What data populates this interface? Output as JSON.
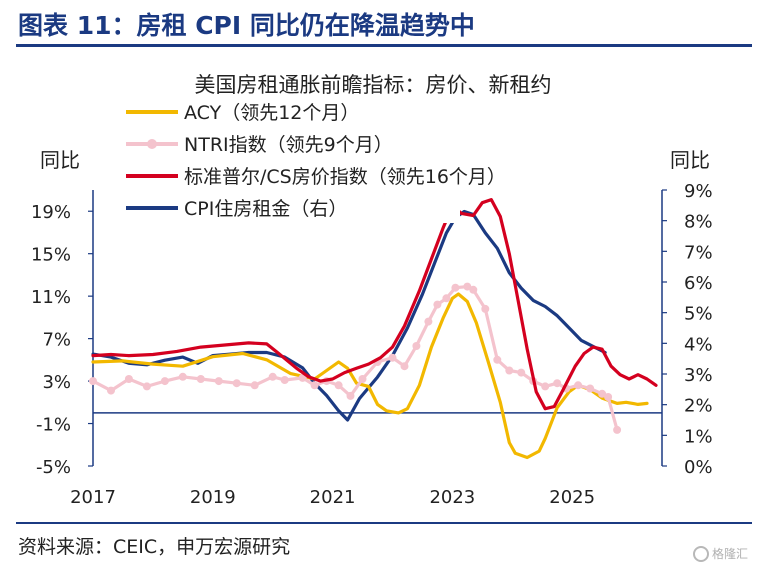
{
  "figure_title": "图表 11：房租 CPI 同比仍在降温趋势中",
  "source": "资料来源：CEIC，申万宏源研究",
  "watermark": "格隆汇",
  "chart_data": {
    "type": "line",
    "title": "美国房租通胀前瞻指标：房价、新租约",
    "left_axis": {
      "label": "同比",
      "ticks": [
        "19%",
        "15%",
        "11%",
        "7%",
        "3%",
        "-1%",
        "-5%"
      ],
      "range": [
        -5,
        21
      ]
    },
    "right_axis": {
      "label": "同比",
      "ticks": [
        "9%",
        "8%",
        "7%",
        "6%",
        "5%",
        "4%",
        "3%",
        "2%",
        "1%",
        "0%"
      ],
      "range": [
        0,
        9
      ]
    },
    "x_ticks": [
      "2017",
      "2019",
      "2021",
      "2023",
      "2025"
    ],
    "x_range": [
      2017.0,
      2026.5
    ],
    "legend_position": "top-left",
    "series": [
      {
        "name": "ACY（领先12个月）",
        "axis": "left",
        "color": "#f2b800",
        "points": [
          [
            2017.0,
            4.8
          ],
          [
            2017.5,
            4.9
          ],
          [
            2018.0,
            4.6
          ],
          [
            2018.5,
            4.4
          ],
          [
            2019.0,
            5.3
          ],
          [
            2019.5,
            5.6
          ],
          [
            2019.9,
            5.0
          ],
          [
            2020.3,
            3.7
          ],
          [
            2020.7,
            3.2
          ],
          [
            2020.9,
            4.0
          ],
          [
            2021.1,
            4.8
          ],
          [
            2021.25,
            4.2
          ],
          [
            2021.4,
            2.8
          ],
          [
            2021.6,
            2.5
          ],
          [
            2021.75,
            0.8
          ],
          [
            2021.9,
            0.2
          ],
          [
            2022.1,
            0.0
          ],
          [
            2022.25,
            0.4
          ],
          [
            2022.45,
            2.6
          ],
          [
            2022.65,
            6.2
          ],
          [
            2022.85,
            9.0
          ],
          [
            2023.0,
            10.8
          ],
          [
            2023.1,
            11.2
          ],
          [
            2023.25,
            10.5
          ],
          [
            2023.4,
            8.5
          ],
          [
            2023.6,
            4.8
          ],
          [
            2023.8,
            1.0
          ],
          [
            2023.95,
            -2.8
          ],
          [
            2024.05,
            -3.8
          ],
          [
            2024.25,
            -4.2
          ],
          [
            2024.45,
            -3.6
          ],
          [
            2024.55,
            -2.4
          ],
          [
            2024.75,
            0.5
          ],
          [
            2024.95,
            2.0
          ],
          [
            2025.1,
            2.6
          ],
          [
            2025.3,
            2.2
          ],
          [
            2025.5,
            1.4
          ],
          [
            2025.75,
            0.9
          ],
          [
            2025.9,
            1.0
          ],
          [
            2026.1,
            0.8
          ],
          [
            2026.25,
            0.9
          ]
        ]
      },
      {
        "name": "NTRI指数（领先9个月）",
        "axis": "left",
        "color": "#f4c3cd",
        "points": [
          [
            2017.0,
            3.0
          ],
          [
            2017.3,
            2.1
          ],
          [
            2017.6,
            3.2
          ],
          [
            2017.9,
            2.5
          ],
          [
            2018.2,
            3.0
          ],
          [
            2018.5,
            3.4
          ],
          [
            2018.8,
            3.2
          ],
          [
            2019.1,
            3.0
          ],
          [
            2019.4,
            2.8
          ],
          [
            2019.7,
            2.6
          ],
          [
            2020.0,
            3.4
          ],
          [
            2020.2,
            3.1
          ],
          [
            2020.5,
            3.3
          ],
          [
            2020.7,
            2.6
          ],
          [
            2020.9,
            3.0
          ],
          [
            2021.1,
            2.6
          ],
          [
            2021.3,
            1.6
          ],
          [
            2021.5,
            3.2
          ],
          [
            2021.75,
            4.8
          ],
          [
            2022.0,
            5.2
          ],
          [
            2022.2,
            4.4
          ],
          [
            2022.4,
            6.3
          ],
          [
            2022.6,
            8.6
          ],
          [
            2022.75,
            10.2
          ],
          [
            2022.9,
            10.8
          ],
          [
            2023.05,
            11.8
          ],
          [
            2023.25,
            11.9
          ],
          [
            2023.35,
            11.6
          ],
          [
            2023.55,
            9.8
          ],
          [
            2023.75,
            5.0
          ],
          [
            2023.95,
            4.0
          ],
          [
            2024.15,
            3.8
          ],
          [
            2024.35,
            3.0
          ],
          [
            2024.55,
            2.5
          ],
          [
            2024.75,
            2.8
          ],
          [
            2024.9,
            2.3
          ],
          [
            2025.1,
            2.6
          ],
          [
            2025.3,
            2.3
          ],
          [
            2025.5,
            1.8
          ],
          [
            2025.6,
            1.5
          ],
          [
            2025.75,
            -1.6
          ]
        ]
      },
      {
        "name": "标准普尔/CS房价指数（领先16个月）",
        "axis": "left",
        "color": "#d4001f",
        "points": [
          [
            2017.0,
            5.4
          ],
          [
            2017.3,
            5.5
          ],
          [
            2017.6,
            5.4
          ],
          [
            2018.0,
            5.5
          ],
          [
            2018.4,
            5.8
          ],
          [
            2018.8,
            6.2
          ],
          [
            2019.2,
            6.4
          ],
          [
            2019.6,
            6.6
          ],
          [
            2019.9,
            6.5
          ],
          [
            2020.1,
            5.6
          ],
          [
            2020.4,
            4.2
          ],
          [
            2020.6,
            3.4
          ],
          [
            2020.8,
            3.0
          ],
          [
            2021.0,
            3.2
          ],
          [
            2021.2,
            3.8
          ],
          [
            2021.4,
            4.2
          ],
          [
            2021.6,
            4.6
          ],
          [
            2021.8,
            5.2
          ],
          [
            2022.0,
            6.2
          ],
          [
            2022.2,
            8.2
          ],
          [
            2022.45,
            11.5
          ],
          [
            2022.65,
            14.5
          ],
          [
            2022.85,
            17.5
          ],
          [
            2023.0,
            19.5
          ],
          [
            2023.15,
            18.8
          ],
          [
            2023.35,
            18.6
          ],
          [
            2023.5,
            19.8
          ],
          [
            2023.65,
            20.1
          ],
          [
            2023.8,
            18.5
          ],
          [
            2023.95,
            15.0
          ],
          [
            2024.1,
            10.5
          ],
          [
            2024.25,
            6.0
          ],
          [
            2024.4,
            2.0
          ],
          [
            2024.55,
            0.4
          ],
          [
            2024.7,
            0.6
          ],
          [
            2024.85,
            2.2
          ],
          [
            2025.05,
            4.4
          ],
          [
            2025.2,
            5.6
          ],
          [
            2025.35,
            6.2
          ],
          [
            2025.5,
            6.0
          ],
          [
            2025.65,
            4.4
          ],
          [
            2025.8,
            3.6
          ],
          [
            2025.95,
            3.2
          ],
          [
            2026.1,
            3.6
          ],
          [
            2026.25,
            3.2
          ],
          [
            2026.4,
            2.6
          ]
        ]
      },
      {
        "name": "CPI住房租金（右）",
        "axis": "right",
        "color": "#1b3a82",
        "points": [
          [
            2017.0,
            3.65
          ],
          [
            2017.3,
            3.55
          ],
          [
            2017.6,
            3.35
          ],
          [
            2017.9,
            3.3
          ],
          [
            2018.2,
            3.45
          ],
          [
            2018.5,
            3.55
          ],
          [
            2018.75,
            3.35
          ],
          [
            2019.0,
            3.6
          ],
          [
            2019.3,
            3.65
          ],
          [
            2019.6,
            3.7
          ],
          [
            2019.9,
            3.7
          ],
          [
            2020.2,
            3.55
          ],
          [
            2020.5,
            3.2
          ],
          [
            2020.7,
            2.7
          ],
          [
            2020.9,
            2.3
          ],
          [
            2021.1,
            1.8
          ],
          [
            2021.25,
            1.5
          ],
          [
            2021.45,
            2.2
          ],
          [
            2021.75,
            2.9
          ],
          [
            2022.0,
            3.6
          ],
          [
            2022.25,
            4.5
          ],
          [
            2022.5,
            5.6
          ],
          [
            2022.7,
            6.6
          ],
          [
            2022.9,
            7.6
          ],
          [
            2023.05,
            8.1
          ],
          [
            2023.2,
            8.3
          ],
          [
            2023.35,
            8.2
          ],
          [
            2023.55,
            7.6
          ],
          [
            2023.75,
            7.1
          ],
          [
            2023.95,
            6.3
          ],
          [
            2024.15,
            5.8
          ],
          [
            2024.35,
            5.4
          ],
          [
            2024.55,
            5.2
          ],
          [
            2024.75,
            4.9
          ],
          [
            2024.95,
            4.5
          ],
          [
            2025.15,
            4.1
          ],
          [
            2025.35,
            3.9
          ],
          [
            2025.55,
            3.7
          ]
        ]
      }
    ]
  }
}
